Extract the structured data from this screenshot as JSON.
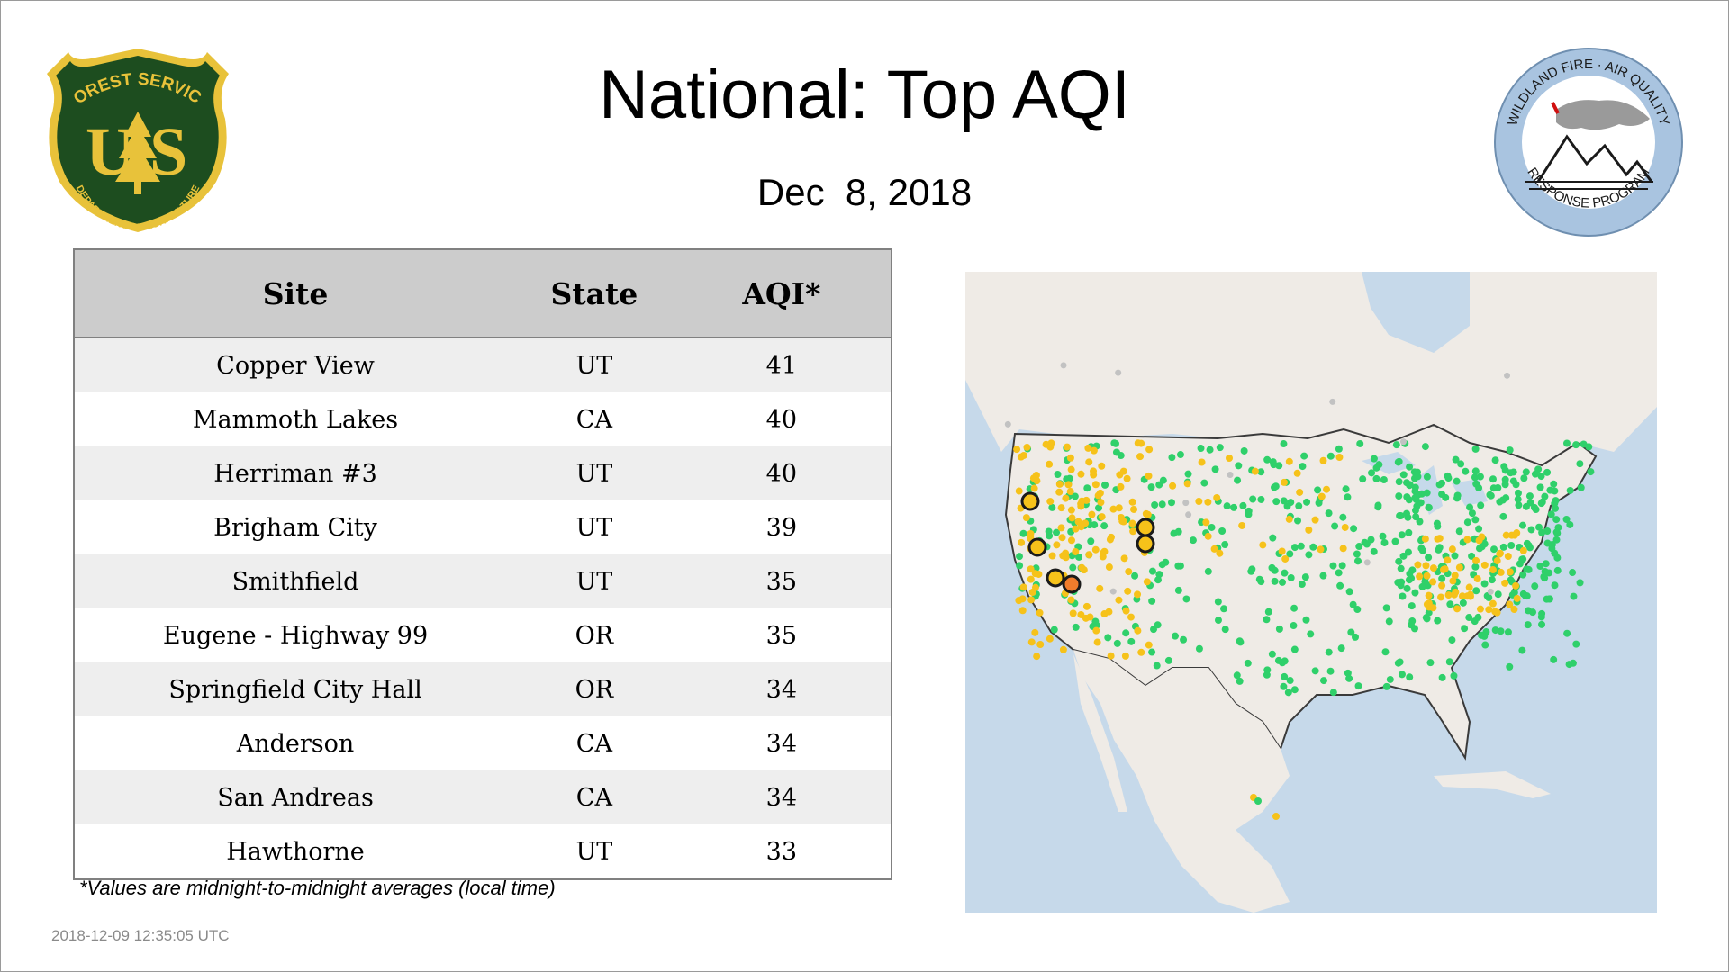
{
  "header": {
    "title": "National: Top AQI",
    "date": "Dec  8, 2018"
  },
  "logos": {
    "usfs": {
      "icon": "forest-service-shield-icon",
      "top_text": "FOREST SERVICE",
      "bottom_text": "DEPARTMENT OF AGRICULTURE",
      "letters": "U S",
      "colors": {
        "shield": "#1d4d1f",
        "trim": "#e8c23a",
        "letters": "#e8c23a"
      }
    },
    "wildland": {
      "icon": "wildland-fire-air-quality-seal-icon",
      "top_text": "WILDLAND FIRE · AIR QUALITY",
      "bottom_text": "RESPONSE PROGRAM",
      "colors": {
        "ring": "#a9c4e0",
        "inner": "#ffffff",
        "smoke": "#9a9a9a"
      }
    }
  },
  "table": {
    "columns": [
      "Site",
      "State",
      "AQI*"
    ],
    "rows": [
      {
        "site": "Copper View",
        "state": "UT",
        "aqi": "41"
      },
      {
        "site": "Mammoth Lakes",
        "state": "CA",
        "aqi": "40"
      },
      {
        "site": "Herriman #3",
        "state": "UT",
        "aqi": "40"
      },
      {
        "site": "Brigham City",
        "state": "UT",
        "aqi": "39"
      },
      {
        "site": "Smithfield",
        "state": "UT",
        "aqi": "35"
      },
      {
        "site": "Eugene - Highway 99",
        "state": "OR",
        "aqi": "35"
      },
      {
        "site": "Springfield City Hall",
        "state": "OR",
        "aqi": "34"
      },
      {
        "site": "Anderson",
        "state": "CA",
        "aqi": "34"
      },
      {
        "site": "San Andreas",
        "state": "CA",
        "aqi": "34"
      },
      {
        "site": "Hawthorne",
        "state": "UT",
        "aqi": "33"
      }
    ]
  },
  "footnote": "*Values are midnight-to-midnight averages (local time)",
  "timestamp": "2018-12-09 12:35:05 UTC",
  "map": {
    "icon": "us-aqi-monitor-map-icon",
    "colors": {
      "land": "#efebe6",
      "water": "#c6d9ea",
      "aqi_good": "#2fd06a",
      "aqi_moderate": "#f6c21a",
      "aqi_usg": "#f07c2c",
      "no_data": "#c2c2c2",
      "border": "#3a3a3a"
    }
  }
}
